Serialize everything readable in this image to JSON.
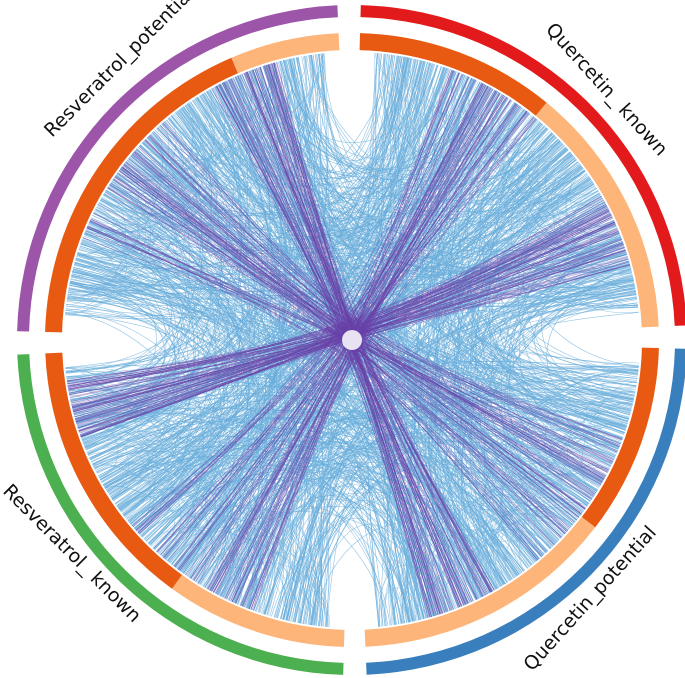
{
  "chord_diagram": {
    "segments": [
      {
        "id": "quercetin_known",
        "label": "Quercetin_ known",
        "color": "#e31a1c"
      },
      {
        "id": "quercetin_potential",
        "label": "Quercetin_potential",
        "color": "#3a7fbd"
      },
      {
        "id": "resveratrol_known",
        "label": "Resveratrol_ known",
        "color": "#4caf50"
      },
      {
        "id": "resveratrol_potential",
        "label": "Resveratrol_potential",
        "color": "#9c55a8"
      }
    ],
    "inner_track_colors": {
      "dark": "#e85a12",
      "light": "#fdb57a"
    },
    "link_colors": {
      "primary": "#6aaedb",
      "secondary": "#6a3fa8"
    }
  }
}
